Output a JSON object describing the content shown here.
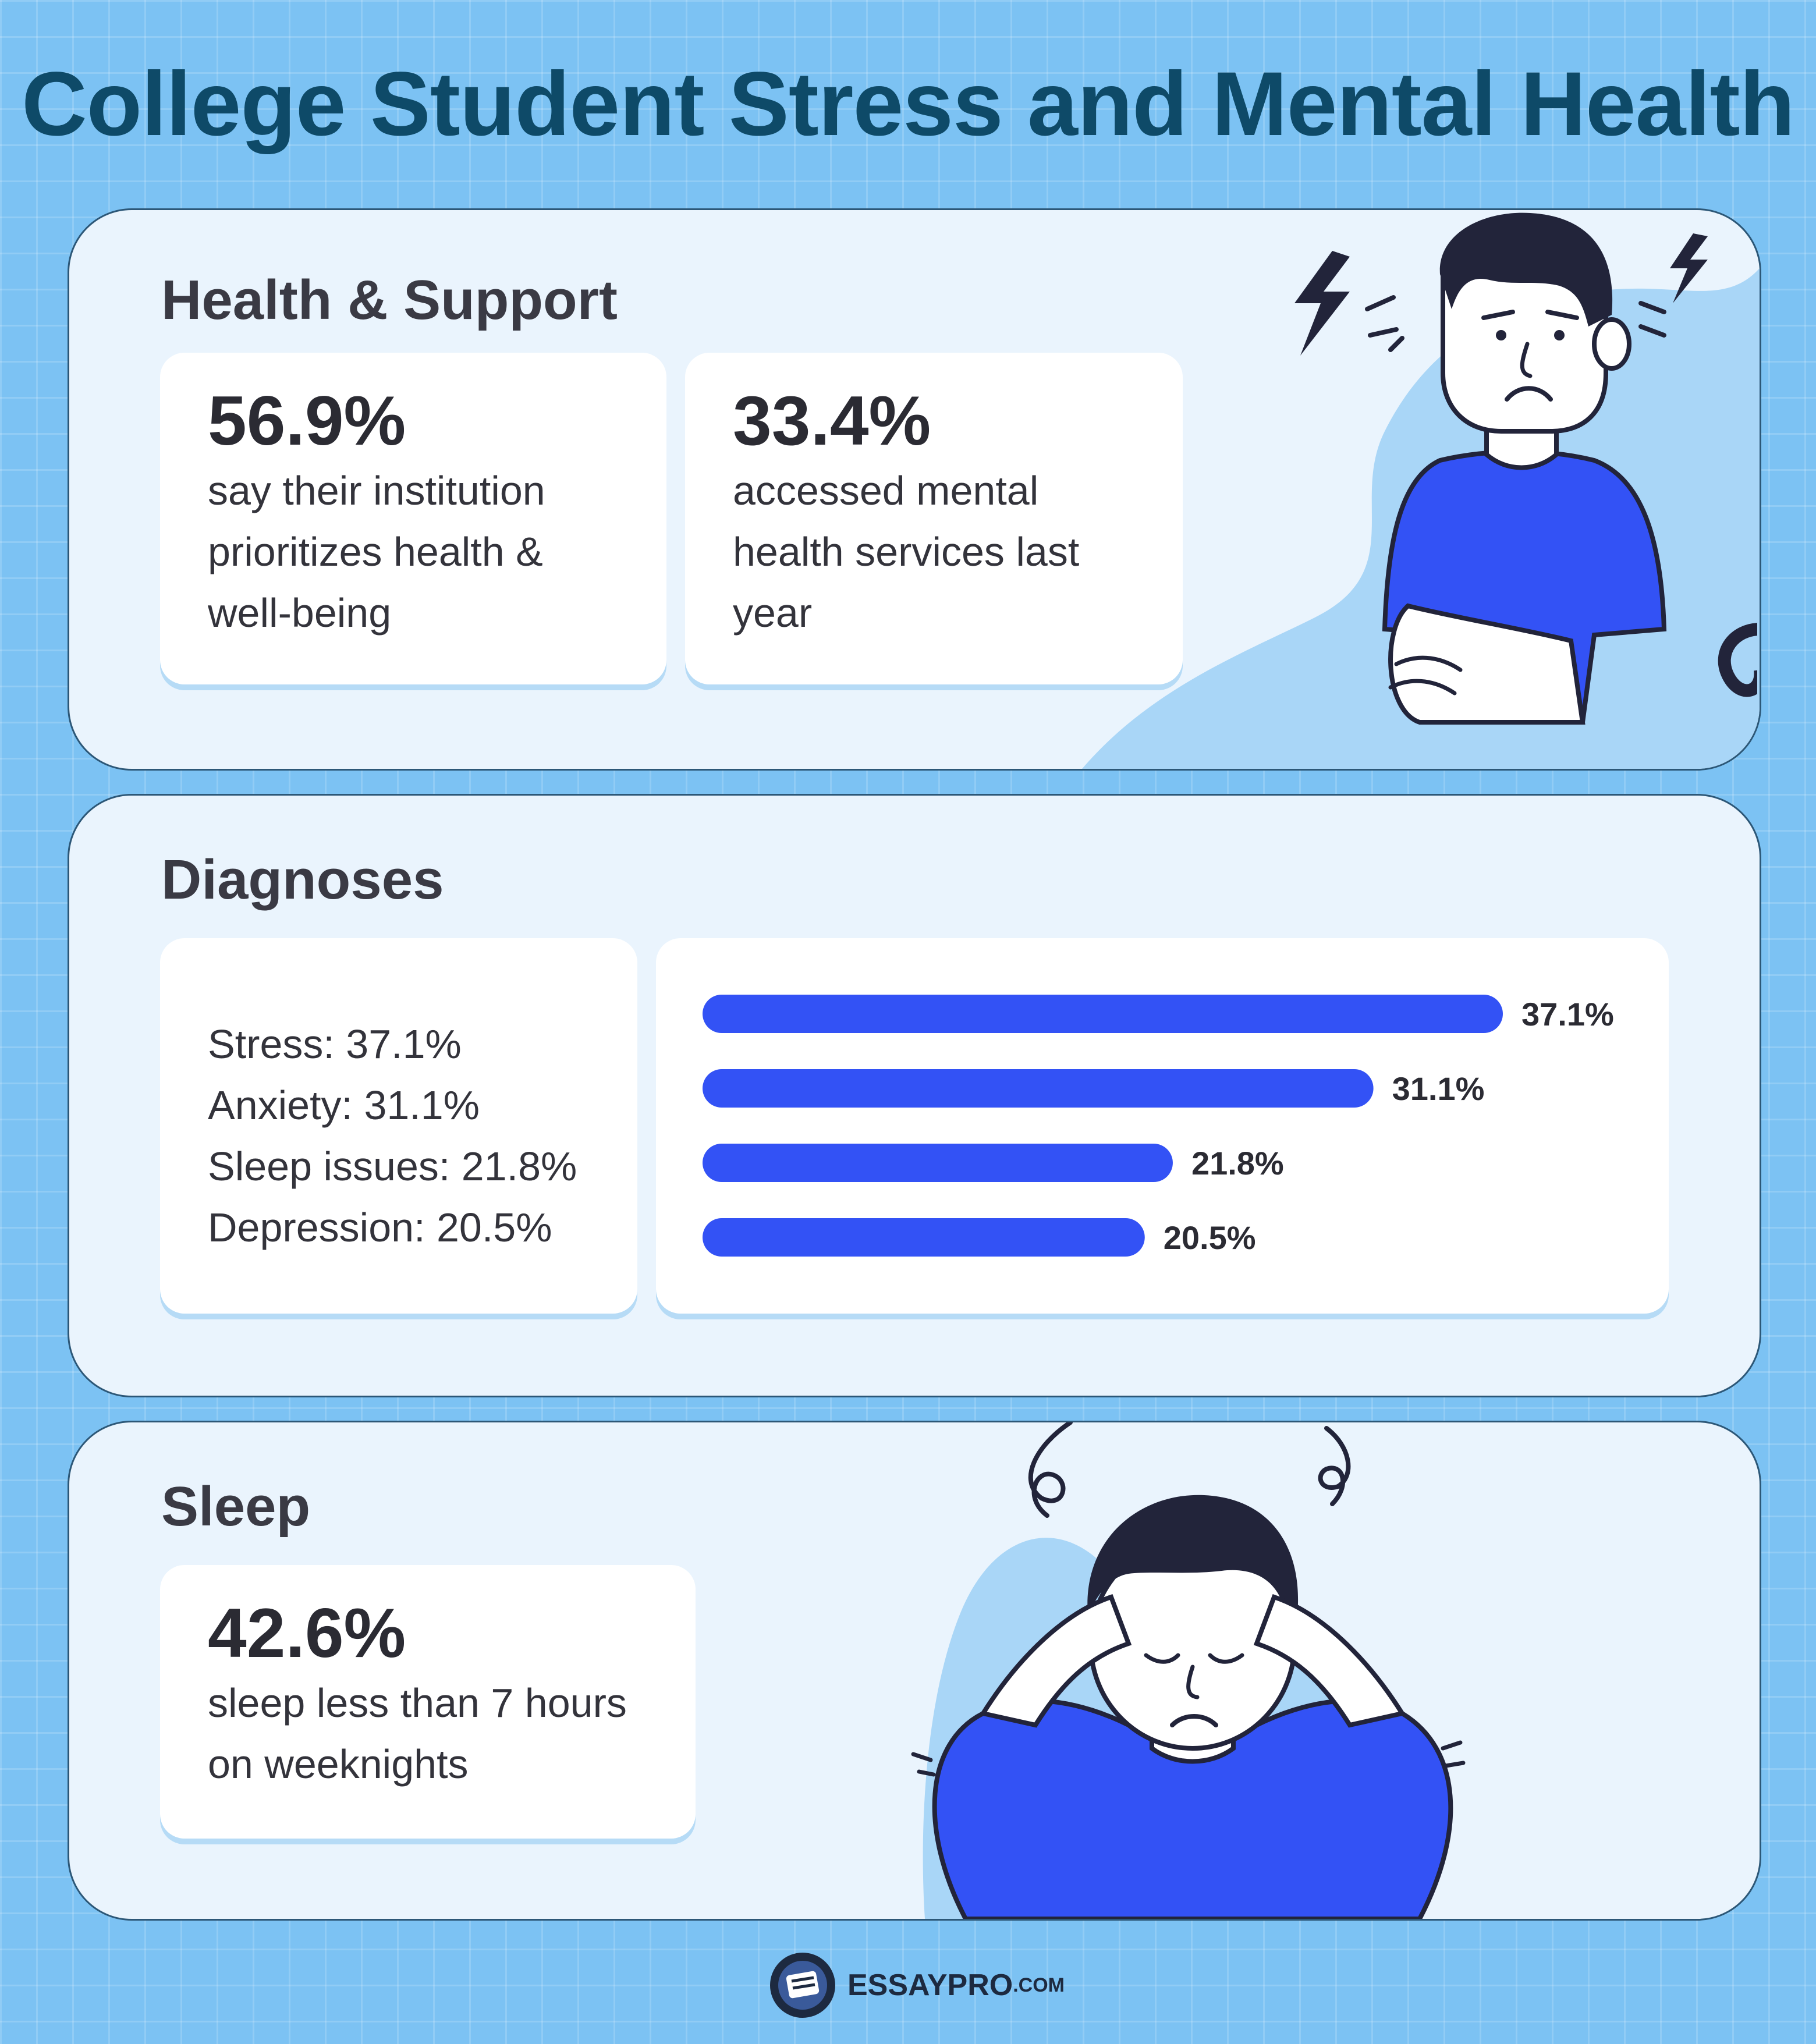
{
  "title": "College Student Stress and Mental Health",
  "colors": {
    "accent": "#3352f5",
    "title": "#0e4a68",
    "panel_bg": "#eaf4fd",
    "page_bg": "#7cc2f3"
  },
  "health": {
    "title": "Health & Support",
    "stats": [
      {
        "value": "56.9%",
        "lines": [
          "say their institution",
          "prioritizes health &",
          "well-being"
        ]
      },
      {
        "value": "33.4%",
        "lines": [
          "accessed mental",
          "health services last",
          "year"
        ]
      }
    ]
  },
  "diagnoses": {
    "title": "Diagnoses",
    "list": [
      "Stress: 37.1%",
      "Anxiety: 31.1%",
      "Sleep issues: 21.8%",
      "Depression: 20.5%"
    ]
  },
  "sleep": {
    "title": "Sleep",
    "value": "42.6%",
    "lines": [
      "sleep less than 7 hours",
      "on weeknights"
    ]
  },
  "chart_data": {
    "type": "bar",
    "orientation": "horizontal",
    "categories": [
      "Stress",
      "Anxiety",
      "Sleep issues",
      "Depression"
    ],
    "values": [
      37.1,
      31.1,
      21.8,
      20.5
    ],
    "value_labels": [
      "37.1%",
      "31.1%",
      "21.8%",
      "20.5%"
    ],
    "color": "#3352f5",
    "xlabel": "",
    "ylabel": "",
    "grid": false
  },
  "footer": {
    "brand": "ESSAYPRO",
    "suffix": ".COM"
  }
}
